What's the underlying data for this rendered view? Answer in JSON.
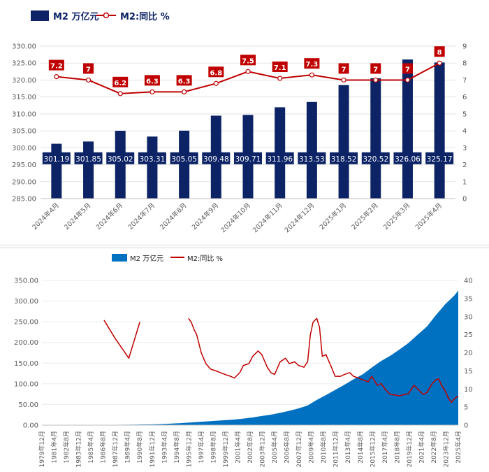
{
  "colors": {
    "bar_dark": "#0c2366",
    "line_red": "#c00000",
    "bar_blue": "#0070c0",
    "grid": "#e3e3e3",
    "axis_text": "#595959"
  },
  "chart_data": [
    {
      "type": "bar",
      "legend": {
        "bar": "M2 万亿元",
        "line": "M2:同比 %",
        "position": "top-left"
      },
      "categories": [
        "2024年4月",
        "2024年5月",
        "2024年6月",
        "2024年7月",
        "2024年8月",
        "2024年9月",
        "2024年10月",
        "2024年11月",
        "2024年12月",
        "2025年1月",
        "2025年2月",
        "2025年3月",
        "2025年4月"
      ],
      "series": [
        {
          "name": "M2 万亿元",
          "axis": "left",
          "type": "bar",
          "values": [
            301.19,
            301.85,
            305.02,
            303.31,
            305.05,
            309.48,
            309.71,
            311.96,
            313.53,
            318.52,
            320.52,
            326.06,
            325.17
          ],
          "labels": [
            "301.19",
            "301.85",
            "305.02",
            "303.31",
            "305.05",
            "309.48",
            "309.71",
            "311.96",
            "313.53",
            "318.52",
            "320.52",
            "326.06",
            "325.17"
          ]
        },
        {
          "name": "M2:同比 %",
          "axis": "right",
          "type": "line",
          "values": [
            7.2,
            7.0,
            6.2,
            6.3,
            6.3,
            6.8,
            7.5,
            7.1,
            7.3,
            7.0,
            7.0,
            7.0,
            8.0
          ],
          "labels": [
            "7.2",
            "7",
            "6.2",
            "6.3",
            "6.3",
            "6.8",
            "7.5",
            "7.1",
            "7.3",
            "7",
            "7",
            "7",
            "8"
          ]
        }
      ],
      "y_left": {
        "ylim": [
          285,
          330
        ],
        "ticks": [
          "285.00",
          "290.00",
          "295.00",
          "300.00",
          "305.00",
          "310.00",
          "315.00",
          "320.00",
          "325.00",
          "330.00"
        ]
      },
      "y_right": {
        "ylim": [
          0,
          9
        ],
        "ticks": [
          "0",
          "1",
          "2",
          "3",
          "4",
          "5",
          "6",
          "7",
          "8",
          "9"
        ]
      }
    },
    {
      "type": "area",
      "legend": {
        "area": "M2 万亿元",
        "line": "M2:同比 %",
        "position": "top-center"
      },
      "x_labels": [
        "1979年12月",
        "1981年4月",
        "1982年8月",
        "1983年12月",
        "1985年4月",
        "1986年8月",
        "1987年12月",
        "1989年4月",
        "1990年8月",
        "1991年12月",
        "1993年4月",
        "1994年8月",
        "1995年12月",
        "1997年4月",
        "1998年8月",
        "1999年12月",
        "2001年4月",
        "2002年8月",
        "2003年12月",
        "2005年4月",
        "2006年8月",
        "2007年12月",
        "2009年4月",
        "2010年8月",
        "2011年12月",
        "2013年4月",
        "2014年8月",
        "2015年12月",
        "2017年4月",
        "2018年8月",
        "2019年12月",
        "2021年4月",
        "2022年8月",
        "2023年12月",
        "2025年4月"
      ],
      "x_range": [
        1979.92,
        2025.33
      ],
      "y_left": {
        "ylim": [
          0,
          350
        ],
        "ticks": [
          "0.00",
          "50.00",
          "100.00",
          "150.00",
          "200.00",
          "250.00",
          "300.00",
          "350.00"
        ]
      },
      "y_right": {
        "ylim": [
          0,
          40
        ],
        "ticks": [
          "0",
          "5",
          "10",
          "15",
          "20",
          "25",
          "30",
          "35",
          "40"
        ]
      },
      "m2_points": [
        [
          1985.9,
          0.6
        ],
        [
          1987.9,
          0.9
        ],
        [
          1989.9,
          1.3
        ],
        [
          1990.9,
          1.6
        ],
        [
          1991.9,
          2.0
        ],
        [
          1992.9,
          2.5
        ],
        [
          1993.9,
          3.5
        ],
        [
          1994.9,
          4.7
        ],
        [
          1995.9,
          6.1
        ],
        [
          1996.9,
          7.6
        ],
        [
          1997.9,
          9.1
        ],
        [
          1998.9,
          10.5
        ],
        [
          1999.9,
          12.0
        ],
        [
          2000.9,
          13.5
        ],
        [
          2001.9,
          15.8
        ],
        [
          2002.9,
          18.5
        ],
        [
          2003.9,
          22.1
        ],
        [
          2004.9,
          25.3
        ],
        [
          2005.9,
          29.9
        ],
        [
          2006.9,
          34.6
        ],
        [
          2007.9,
          40.3
        ],
        [
          2008.9,
          47.5
        ],
        [
          2009.9,
          61.0
        ],
        [
          2010.9,
          72.6
        ],
        [
          2011.9,
          85.2
        ],
        [
          2012.9,
          97.4
        ],
        [
          2013.9,
          110.7
        ],
        [
          2014.9,
          122.8
        ],
        [
          2015.9,
          139.2
        ],
        [
          2016.9,
          155.0
        ],
        [
          2017.9,
          167.7
        ],
        [
          2018.9,
          182.7
        ],
        [
          2019.9,
          198.6
        ],
        [
          2020.9,
          218.7
        ],
        [
          2021.9,
          238.3
        ],
        [
          2022.9,
          266.4
        ],
        [
          2023.9,
          292.3
        ],
        [
          2024.9,
          313.5
        ],
        [
          2025.33,
          325.2
        ]
      ],
      "yoy_segments": [
        [
          [
            1986.7,
            29
          ],
          [
            1987.9,
            24
          ],
          [
            1989.4,
            18.5
          ],
          [
            1990.6,
            28.5
          ]
        ],
        [
          [
            1995.9,
            29.5
          ],
          [
            1996.2,
            28.5
          ],
          [
            1996.5,
            26.5
          ],
          [
            1996.8,
            25
          ],
          [
            1997.3,
            20
          ],
          [
            1997.8,
            17
          ],
          [
            1998.3,
            15.5
          ],
          [
            1998.9,
            15
          ],
          [
            1999.4,
            14.5
          ],
          [
            1999.9,
            14
          ],
          [
            2000.5,
            13.5
          ],
          [
            2000.9,
            13
          ],
          [
            2001.5,
            14.5
          ],
          [
            2001.9,
            16.5
          ],
          [
            2002.5,
            17
          ],
          [
            2002.9,
            19
          ],
          [
            2003.5,
            20.5
          ],
          [
            2003.9,
            19.5
          ],
          [
            2004.5,
            16
          ],
          [
            2004.9,
            14.5
          ],
          [
            2005.3,
            14
          ],
          [
            2005.9,
            17.5
          ],
          [
            2006.5,
            18.5
          ],
          [
            2006.9,
            17
          ],
          [
            2007.5,
            17.5
          ],
          [
            2007.9,
            16.5
          ],
          [
            2008.5,
            16
          ],
          [
            2008.9,
            17.5
          ],
          [
            2009.2,
            25
          ],
          [
            2009.5,
            28.5
          ],
          [
            2009.9,
            29.5
          ],
          [
            2010.2,
            27
          ],
          [
            2010.5,
            19
          ],
          [
            2010.9,
            19.5
          ],
          [
            2011.5,
            16
          ],
          [
            2011.9,
            13.5
          ],
          [
            2012.5,
            13.5
          ],
          [
            2012.9,
            14
          ],
          [
            2013.5,
            14.5
          ],
          [
            2013.9,
            13.5
          ],
          [
            2014.5,
            13
          ],
          [
            2014.9,
            12.5
          ],
          [
            2015.5,
            12
          ],
          [
            2015.9,
            13.5
          ],
          [
            2016.5,
            11
          ],
          [
            2016.9,
            11.5
          ],
          [
            2017.5,
            9.5
          ],
          [
            2017.9,
            8.5
          ],
          [
            2018.5,
            8.3
          ],
          [
            2018.9,
            8.1
          ],
          [
            2019.5,
            8.5
          ],
          [
            2019.9,
            8.7
          ],
          [
            2020.5,
            11
          ],
          [
            2020.9,
            10
          ],
          [
            2021.5,
            8.5
          ],
          [
            2021.9,
            9
          ],
          [
            2022.5,
            11.5
          ],
          [
            2022.9,
            12.5
          ],
          [
            2023.2,
            12.8
          ],
          [
            2023.5,
            11
          ],
          [
            2023.9,
            9.5
          ],
          [
            2024.3,
            7.2
          ],
          [
            2024.6,
            6.3
          ],
          [
            2024.9,
            7.3
          ],
          [
            2025.33,
            8
          ]
        ]
      ]
    }
  ]
}
